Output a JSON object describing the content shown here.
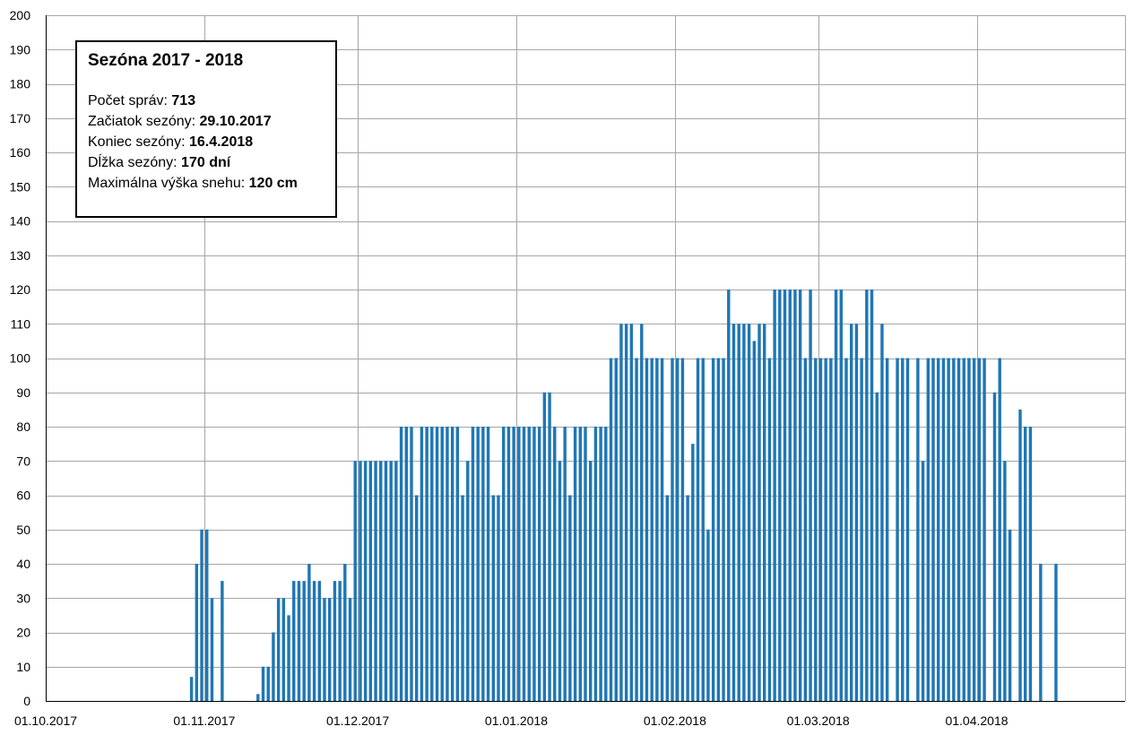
{
  "infobox": {
    "title": "Sezóna 2017 - 2018",
    "rows": [
      {
        "label": "Počet správ:",
        "value": "713"
      },
      {
        "label": "Začiatok sezóny:",
        "value": "29.10.2017"
      },
      {
        "label": "Koniec sezóny:",
        "value": "16.4.2018"
      },
      {
        "label": "Dĺžka sezóny:",
        "value": "170 dní"
      },
      {
        "label": "Maximálna výška snehu:",
        "value": "120 cm"
      }
    ]
  },
  "colors": {
    "bar": "#1f77b4",
    "grid": "#a6a6a6",
    "axis": "#000000"
  },
  "chart_data": {
    "type": "bar",
    "title": "",
    "xlabel": "",
    "ylabel": "",
    "ylim": [
      0,
      200
    ],
    "yticks": [
      0,
      10,
      20,
      30,
      40,
      50,
      60,
      70,
      80,
      90,
      100,
      110,
      120,
      130,
      140,
      150,
      160,
      170,
      180,
      190,
      200
    ],
    "xlim": [
      "2017-10-01",
      "2018-04-30"
    ],
    "xticks": [
      "01.10.2017",
      "01.11.2017",
      "01.12.2017",
      "01.01.2018",
      "01.02.2018",
      "01.03.2018",
      "01.04.2018"
    ],
    "grid": true,
    "series": [
      {
        "points": [
          [
            "2017-10-29",
            7
          ],
          [
            "2017-10-30",
            40
          ],
          [
            "2017-10-31",
            50
          ],
          [
            "2017-11-01",
            50
          ],
          [
            "2017-11-02",
            30
          ],
          [
            "2017-11-04",
            35
          ],
          [
            "2017-11-11",
            2
          ],
          [
            "2017-11-12",
            10
          ],
          [
            "2017-11-13",
            10
          ],
          [
            "2017-11-14",
            20
          ],
          [
            "2017-11-15",
            30
          ],
          [
            "2017-11-16",
            30
          ],
          [
            "2017-11-17",
            25
          ],
          [
            "2017-11-18",
            35
          ],
          [
            "2017-11-19",
            35
          ],
          [
            "2017-11-20",
            35
          ],
          [
            "2017-11-21",
            40
          ],
          [
            "2017-11-22",
            35
          ],
          [
            "2017-11-23",
            35
          ],
          [
            "2017-11-24",
            30
          ],
          [
            "2017-11-25",
            30
          ],
          [
            "2017-11-26",
            35
          ],
          [
            "2017-11-27",
            35
          ],
          [
            "2017-11-28",
            40
          ],
          [
            "2017-11-29",
            30
          ],
          [
            "2017-11-30",
            70
          ],
          [
            "2017-12-01",
            70
          ],
          [
            "2017-12-02",
            70
          ],
          [
            "2017-12-03",
            70
          ],
          [
            "2017-12-04",
            70
          ],
          [
            "2017-12-05",
            70
          ],
          [
            "2017-12-06",
            70
          ],
          [
            "2017-12-07",
            70
          ],
          [
            "2017-12-08",
            70
          ],
          [
            "2017-12-09",
            80
          ],
          [
            "2017-12-10",
            80
          ],
          [
            "2017-12-11",
            80
          ],
          [
            "2017-12-12",
            60
          ],
          [
            "2017-12-13",
            80
          ],
          [
            "2017-12-14",
            80
          ],
          [
            "2017-12-15",
            80
          ],
          [
            "2017-12-16",
            80
          ],
          [
            "2017-12-17",
            80
          ],
          [
            "2017-12-18",
            80
          ],
          [
            "2017-12-19",
            80
          ],
          [
            "2017-12-20",
            80
          ],
          [
            "2017-12-21",
            60
          ],
          [
            "2017-12-22",
            70
          ],
          [
            "2017-12-23",
            80
          ],
          [
            "2017-12-24",
            80
          ],
          [
            "2017-12-25",
            80
          ],
          [
            "2017-12-26",
            80
          ],
          [
            "2017-12-27",
            60
          ],
          [
            "2017-12-28",
            60
          ],
          [
            "2017-12-29",
            80
          ],
          [
            "2017-12-30",
            80
          ],
          [
            "2017-12-31",
            80
          ],
          [
            "2018-01-01",
            80
          ],
          [
            "2018-01-02",
            80
          ],
          [
            "2018-01-03",
            80
          ],
          [
            "2018-01-04",
            80
          ],
          [
            "2018-01-05",
            80
          ],
          [
            "2018-01-06",
            90
          ],
          [
            "2018-01-07",
            90
          ],
          [
            "2018-01-08",
            80
          ],
          [
            "2018-01-09",
            70
          ],
          [
            "2018-01-10",
            80
          ],
          [
            "2018-01-11",
            60
          ],
          [
            "2018-01-12",
            80
          ],
          [
            "2018-01-13",
            80
          ],
          [
            "2018-01-14",
            80
          ],
          [
            "2018-01-15",
            70
          ],
          [
            "2018-01-16",
            80
          ],
          [
            "2018-01-17",
            80
          ],
          [
            "2018-01-18",
            80
          ],
          [
            "2018-01-19",
            100
          ],
          [
            "2018-01-20",
            100
          ],
          [
            "2018-01-21",
            110
          ],
          [
            "2018-01-22",
            110
          ],
          [
            "2018-01-23",
            110
          ],
          [
            "2018-01-24",
            100
          ],
          [
            "2018-01-25",
            110
          ],
          [
            "2018-01-26",
            100
          ],
          [
            "2018-01-27",
            100
          ],
          [
            "2018-01-28",
            100
          ],
          [
            "2018-01-29",
            100
          ],
          [
            "2018-01-30",
            60
          ],
          [
            "2018-01-31",
            100
          ],
          [
            "2018-02-01",
            100
          ],
          [
            "2018-02-02",
            100
          ],
          [
            "2018-02-03",
            60
          ],
          [
            "2018-02-04",
            75
          ],
          [
            "2018-02-05",
            100
          ],
          [
            "2018-02-06",
            100
          ],
          [
            "2018-02-07",
            50
          ],
          [
            "2018-02-08",
            100
          ],
          [
            "2018-02-09",
            100
          ],
          [
            "2018-02-10",
            100
          ],
          [
            "2018-02-11",
            120
          ],
          [
            "2018-02-12",
            110
          ],
          [
            "2018-02-13",
            110
          ],
          [
            "2018-02-14",
            110
          ],
          [
            "2018-02-15",
            110
          ],
          [
            "2018-02-16",
            105
          ],
          [
            "2018-02-17",
            110
          ],
          [
            "2018-02-18",
            110
          ],
          [
            "2018-02-19",
            100
          ],
          [
            "2018-02-20",
            120
          ],
          [
            "2018-02-21",
            120
          ],
          [
            "2018-02-22",
            120
          ],
          [
            "2018-02-23",
            120
          ],
          [
            "2018-02-24",
            120
          ],
          [
            "2018-02-25",
            120
          ],
          [
            "2018-02-26",
            100
          ],
          [
            "2018-02-27",
            120
          ],
          [
            "2018-02-28",
            100
          ],
          [
            "2018-03-01",
            100
          ],
          [
            "2018-03-02",
            100
          ],
          [
            "2018-03-03",
            100
          ],
          [
            "2018-03-04",
            120
          ],
          [
            "2018-03-05",
            120
          ],
          [
            "2018-03-06",
            100
          ],
          [
            "2018-03-07",
            110
          ],
          [
            "2018-03-08",
            110
          ],
          [
            "2018-03-09",
            100
          ],
          [
            "2018-03-10",
            120
          ],
          [
            "2018-03-11",
            120
          ],
          [
            "2018-03-12",
            90
          ],
          [
            "2018-03-13",
            110
          ],
          [
            "2018-03-14",
            100
          ],
          [
            "2018-03-16",
            100
          ],
          [
            "2018-03-17",
            100
          ],
          [
            "2018-03-18",
            100
          ],
          [
            "2018-03-20",
            100
          ],
          [
            "2018-03-21",
            70
          ],
          [
            "2018-03-22",
            100
          ],
          [
            "2018-03-23",
            100
          ],
          [
            "2018-03-24",
            100
          ],
          [
            "2018-03-25",
            100
          ],
          [
            "2018-03-26",
            100
          ],
          [
            "2018-03-27",
            100
          ],
          [
            "2018-03-28",
            100
          ],
          [
            "2018-03-29",
            100
          ],
          [
            "2018-03-30",
            100
          ],
          [
            "2018-03-31",
            100
          ],
          [
            "2018-04-01",
            100
          ],
          [
            "2018-04-02",
            100
          ],
          [
            "2018-04-04",
            90
          ],
          [
            "2018-04-05",
            100
          ],
          [
            "2018-04-06",
            70
          ],
          [
            "2018-04-07",
            50
          ],
          [
            "2018-04-09",
            85
          ],
          [
            "2018-04-10",
            80
          ],
          [
            "2018-04-11",
            80
          ],
          [
            "2018-04-13",
            40
          ],
          [
            "2018-04-16",
            40
          ]
        ]
      }
    ]
  }
}
